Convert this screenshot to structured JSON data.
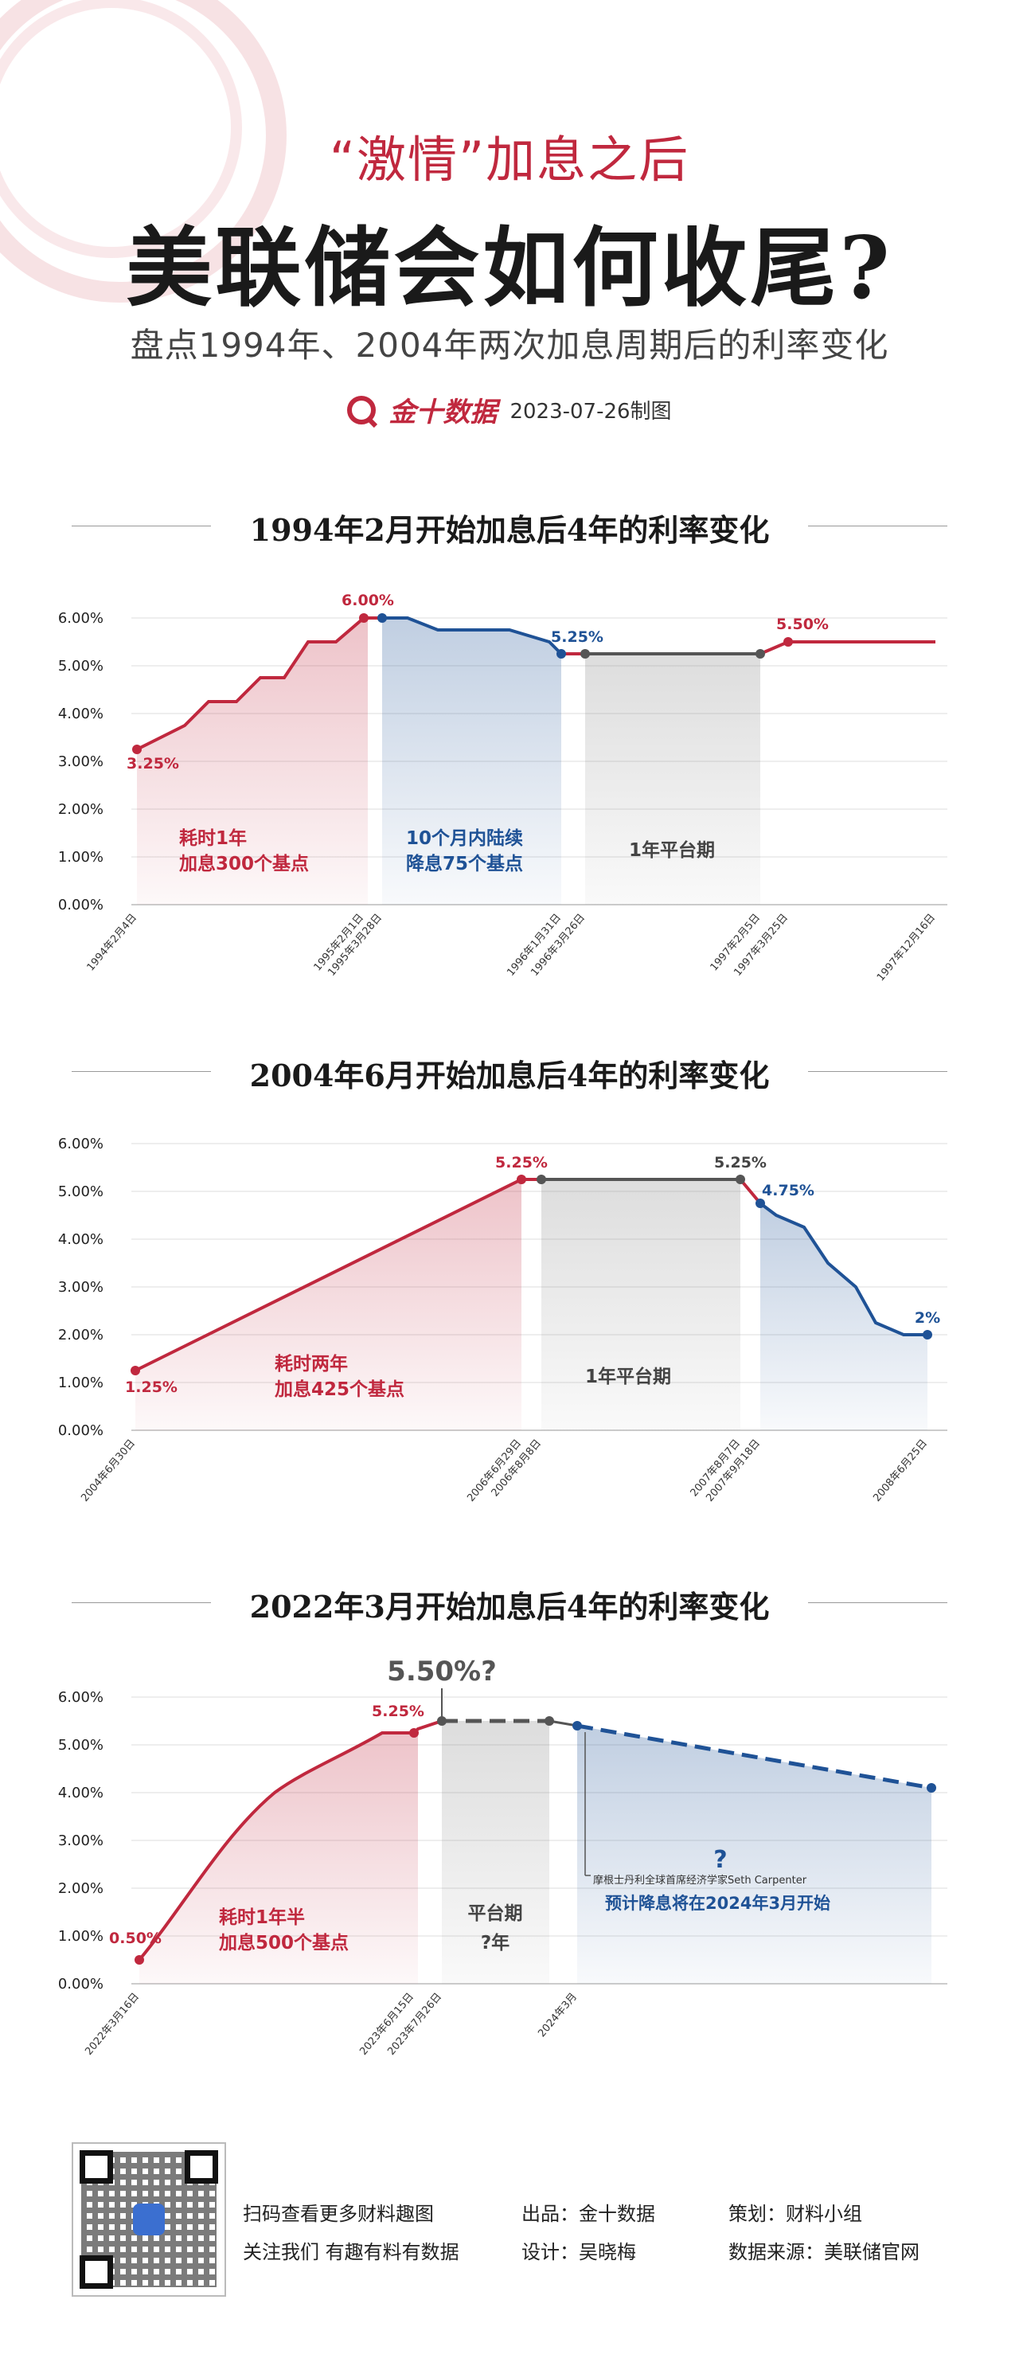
{
  "header": {
    "subtitle1": "“激情”加息之后",
    "title": "美联储会如何收尾?",
    "subtitle2": "盘点1994年、2004年两次加息周期后的利率变化",
    "brand": "金十数据",
    "date": "2023-07-26制图"
  },
  "colors": {
    "red": "#c0283e",
    "blue": "#1f5296",
    "gray": "#555555"
  },
  "chart_data": [
    {
      "type": "line",
      "title": "1994年2月开始加息后4年的利率变化",
      "yticks": [
        "6.00%",
        "5.00%",
        "4.00%",
        "3.00%",
        "2.00%",
        "1.00%",
        "0.00%"
      ],
      "ylim": [
        0,
        6
      ],
      "xticks": [
        "1994年2月4日",
        "1995年2月1日",
        "1995年3月28日",
        "1996年1月31日",
        "1996年3月26日",
        "1997年2月5日",
        "1997年3月25日",
        "1997年12月16日"
      ],
      "series": [
        {
          "color": "red",
          "values": [
            3.25,
            3.75,
            4.25,
            4.25,
            4.75,
            4.75,
            5.5,
            5.5,
            6.0
          ]
        },
        {
          "color": "blue",
          "values": [
            6.0,
            6.0,
            5.75,
            5.75,
            5.75,
            5.5,
            5.25
          ]
        },
        {
          "color": "gray",
          "values": [
            5.25,
            5.25
          ]
        },
        {
          "color": "red",
          "values": [
            5.25,
            5.5,
            5.5,
            5.5
          ]
        }
      ],
      "point_labels": [
        "3.25%",
        "6.00%",
        "5.25%",
        "5.50%"
      ],
      "annotations": {
        "hike": [
          "耗时1年",
          "加息300个基点"
        ],
        "cut": [
          "10个月内陆续",
          "降息75个基点"
        ],
        "flat": "1年平台期"
      }
    },
    {
      "type": "line",
      "title": "2004年6月开始加息后4年的利率变化",
      "yticks": [
        "6.00%",
        "5.00%",
        "4.00%",
        "3.00%",
        "2.00%",
        "1.00%",
        "0.00%"
      ],
      "ylim": [
        0,
        6
      ],
      "xticks": [
        "2004年6月30日",
        "2006年6月29日",
        "2006年8月8日",
        "2007年8月7日",
        "2007年9月18日",
        "2008年6月25日"
      ],
      "series": [
        {
          "color": "red",
          "values": [
            1.25,
            5.25
          ]
        },
        {
          "color": "gray",
          "values": [
            5.25,
            5.25
          ]
        },
        {
          "color": "blue",
          "values": [
            4.75,
            4.5,
            4.25,
            3.5,
            3.0,
            2.25,
            2.0,
            2.0
          ]
        }
      ],
      "point_labels": [
        "1.25%",
        "5.25%",
        "5.25%",
        "4.75%",
        "2%"
      ],
      "annotations": {
        "hike": [
          "耗时两年",
          "加息425个基点"
        ],
        "flat": "1年平台期"
      }
    },
    {
      "type": "line",
      "title": "2022年3月开始加息后4年的利率变化",
      "yticks": [
        "6.00%",
        "5.00%",
        "4.00%",
        "3.00%",
        "2.00%",
        "1.00%",
        "0.00%"
      ],
      "ylim": [
        0,
        6
      ],
      "xticks": [
        "2022年3月16日",
        "2023年6月15日",
        "2023年7月26日",
        "2024年3月"
      ],
      "series": [
        {
          "color": "red",
          "values": [
            0.5,
            0.75,
            1.75,
            2.5,
            3.25,
            4.0,
            4.5,
            4.75,
            5.0,
            5.25,
            5.25,
            5.5
          ]
        },
        {
          "color": "gray",
          "values": [
            5.5,
            5.5
          ]
        },
        {
          "color": "blue",
          "values": [
            5.4,
            4.1
          ]
        }
      ],
      "point_labels": [
        "0.50%",
        "5.25%",
        "5.50%?"
      ],
      "annotations": {
        "hike": [
          "耗时1年半",
          "加息500个基点"
        ],
        "flat": [
          "平台期",
          "?年"
        ],
        "question": "?",
        "source": "摩根士丹利全球首席经济学家Seth Carpenter",
        "forecast": "预计降息将在2024年3月开始"
      }
    }
  ],
  "footer": {
    "scan": "扫码查看更多财料趣图",
    "follow": "关注我们 有趣有料有数据",
    "producer": "出品：金十数据",
    "designer": "设计：吴晓梅",
    "planner": "策划：财料小组",
    "source": "数据来源：美联储官网"
  }
}
